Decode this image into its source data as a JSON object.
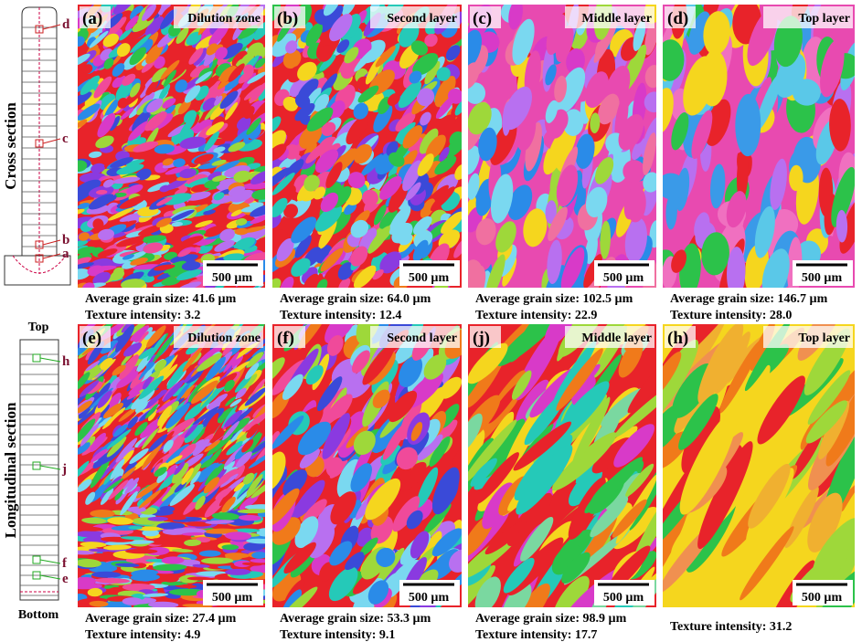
{
  "schematics": [
    {
      "label": "Cross section",
      "markers": [
        "d",
        "c",
        "b",
        "a"
      ]
    },
    {
      "label": "Longitudinal section",
      "top": "Top",
      "bottom": "Bottom",
      "markers": [
        "h",
        "j",
        "f",
        "e"
      ]
    }
  ],
  "panels": [
    {
      "id": "(a)",
      "zone": "Dilution zone",
      "scale": "500 µm",
      "grain_size": "Average grain size: 41.6 µm",
      "texture": "Texture intensity: 3.2"
    },
    {
      "id": "(b)",
      "zone": "Second layer",
      "scale": "500 µm",
      "grain_size": "Average grain size: 64.0 µm",
      "texture": "Texture intensity: 12.4"
    },
    {
      "id": "(c)",
      "zone": "Middle layer",
      "scale": "500 µm",
      "grain_size": "Average grain size: 102.5 µm",
      "texture": "Texture intensity: 22.9"
    },
    {
      "id": "(d)",
      "zone": "Top layer",
      "scale": "500 µm",
      "grain_size": "Average grain size: 146.7 µm",
      "texture": "Texture intensity: 28.0"
    },
    {
      "id": "(e)",
      "zone": "Dilution zone",
      "scale": "500 µm",
      "grain_size": "Average grain size: 27.4 µm",
      "texture": "Texture intensity: 4.9"
    },
    {
      "id": "(f)",
      "zone": "Second layer",
      "scale": "500 µm",
      "grain_size": "Average grain size: 53.3 µm",
      "texture": "Texture intensity: 9.1"
    },
    {
      "id": "(j)",
      "zone": "Middle layer",
      "scale": "500 µm",
      "grain_size": "Average grain size: 98.9 µm",
      "texture": "Texture intensity: 17.7"
    },
    {
      "id": "(h)",
      "zone": "Top layer",
      "scale": "500 µm",
      "texture": "Texture intensity: 31.2"
    }
  ]
}
